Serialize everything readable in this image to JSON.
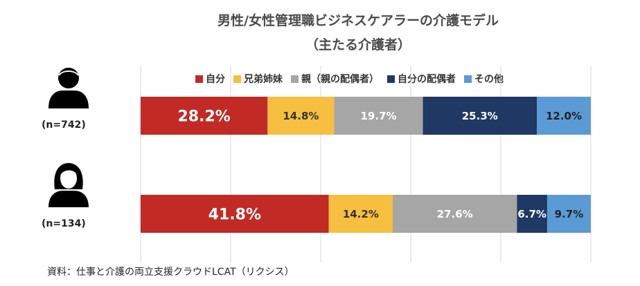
{
  "chart_data": {
    "type": "bar",
    "orientation": "horizontal",
    "stacked": true,
    "title": "男性/女性管理職ビジネスケアラーの介護モデル",
    "subtitle": "（主たる介護者）",
    "categories": [
      "(n=742)",
      "(n=134)"
    ],
    "category_icons": [
      "male-person-icon",
      "female-person-icon"
    ],
    "xlim": [
      0,
      100
    ],
    "grid": true,
    "legend_position": "top",
    "series": [
      {
        "name": "自分",
        "color": "#c12a25",
        "values": [
          28.2,
          41.8
        ],
        "labels": [
          "28.2%",
          "41.8%"
        ],
        "label_color": "#ffffff"
      },
      {
        "name": "兄弟姉妹",
        "color": "#f6bf3f",
        "values": [
          14.8,
          14.2
        ],
        "labels": [
          "14.8%",
          "14.2%"
        ],
        "label_color": "#333333"
      },
      {
        "name": "親（親の配偶者）",
        "color": "#a6a6a6",
        "values": [
          19.7,
          27.6
        ],
        "labels": [
          "19.7%",
          "27.6%"
        ],
        "label_color": "#ffffff"
      },
      {
        "name": "自分の配偶者",
        "color": "#1f3864",
        "values": [
          25.3,
          6.7
        ],
        "labels": [
          "25.3%",
          "6.7%"
        ],
        "label_color": "#ffffff"
      },
      {
        "name": "その他",
        "color": "#5b9bd5",
        "values": [
          12.0,
          9.7
        ],
        "labels": [
          "12.0%",
          "9.7%"
        ],
        "label_color": "#222222"
      }
    ]
  },
  "source": "資料：仕事と介護の両立支援クラウドLCAT（リクシス）"
}
